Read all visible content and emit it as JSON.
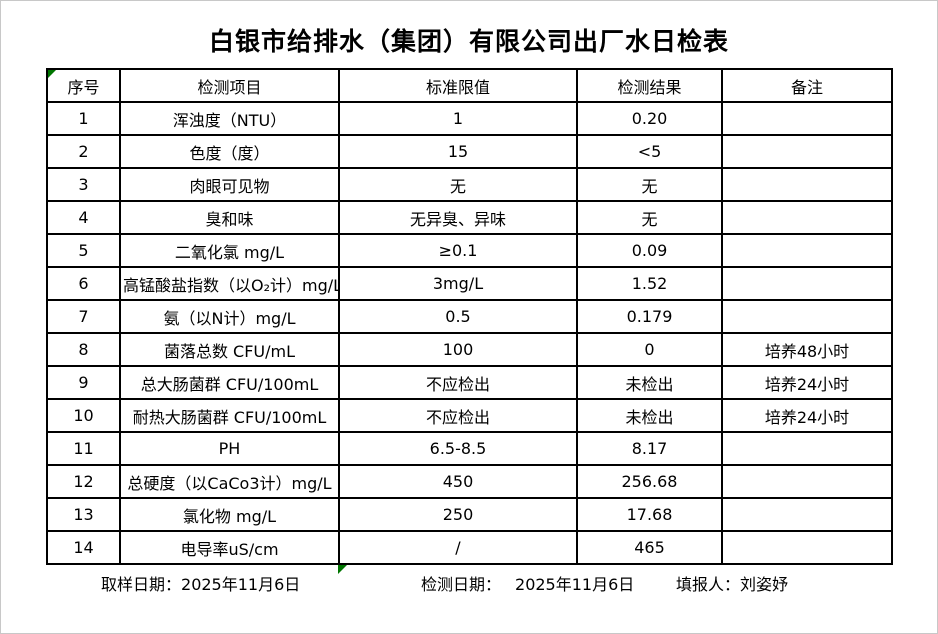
{
  "title": "白银市给排水（集团）有限公司出厂水日检表",
  "table": {
    "headers": [
      "序号",
      "检测项目",
      "标准限值",
      "检测结果",
      "备注"
    ],
    "header_keys": [
      "index",
      "item",
      "limit",
      "result",
      "note"
    ],
    "rows": [
      [
        "1",
        "浑浊度（NTU）",
        "1",
        "0.20",
        ""
      ],
      [
        "2",
        "色度（度）",
        "15",
        "<5",
        ""
      ],
      [
        "3",
        "肉眼可见物",
        "无",
        "无",
        ""
      ],
      [
        "4",
        "臭和味",
        "无异臭、异味",
        "无",
        ""
      ],
      [
        "5",
        "二氧化氯 mg/L",
        "≥0.1",
        "0.09",
        ""
      ],
      [
        "6",
        "高锰酸盐指数（以O₂计）mg/L",
        "3mg/L",
        "1.52",
        ""
      ],
      [
        "7",
        "氨（以N计）mg/L",
        "0.5",
        "0.179",
        ""
      ],
      [
        "8",
        "菌落总数 CFU/mL",
        "100",
        "0",
        "培养48小时"
      ],
      [
        "9",
        "总大肠菌群 CFU/100mL",
        "不应检出",
        "未检出",
        "培养24小时"
      ],
      [
        "10",
        "耐热大肠菌群 CFU/100mL",
        "不应检出",
        "未检出",
        "培养24小时"
      ],
      [
        "11",
        "PH",
        "6.5-8.5",
        "8.17",
        ""
      ],
      [
        "12",
        "总硬度（以CaCo3计）mg/L",
        "450",
        "256.68",
        ""
      ],
      [
        "13",
        "氯化物 mg/L",
        "250",
        "17.68",
        ""
      ],
      [
        "14",
        "电导率uS/cm",
        "/",
        "465",
        ""
      ]
    ]
  },
  "footer": {
    "sample_date_label": "取样日期：",
    "sample_date": "2025年11月6日",
    "test_date_label": "检测日期：",
    "test_date": "2025年11月6日",
    "reporter_label": "填报人：",
    "reporter": "刘姿妤"
  },
  "colors": {
    "indicator_green": "#007500",
    "border_black": "#000000"
  },
  "icons": {
    "corner_indicator": "excel-cell-indicator-triangle",
    "bottom_indicator": "excel-cell-indicator-triangle"
  }
}
